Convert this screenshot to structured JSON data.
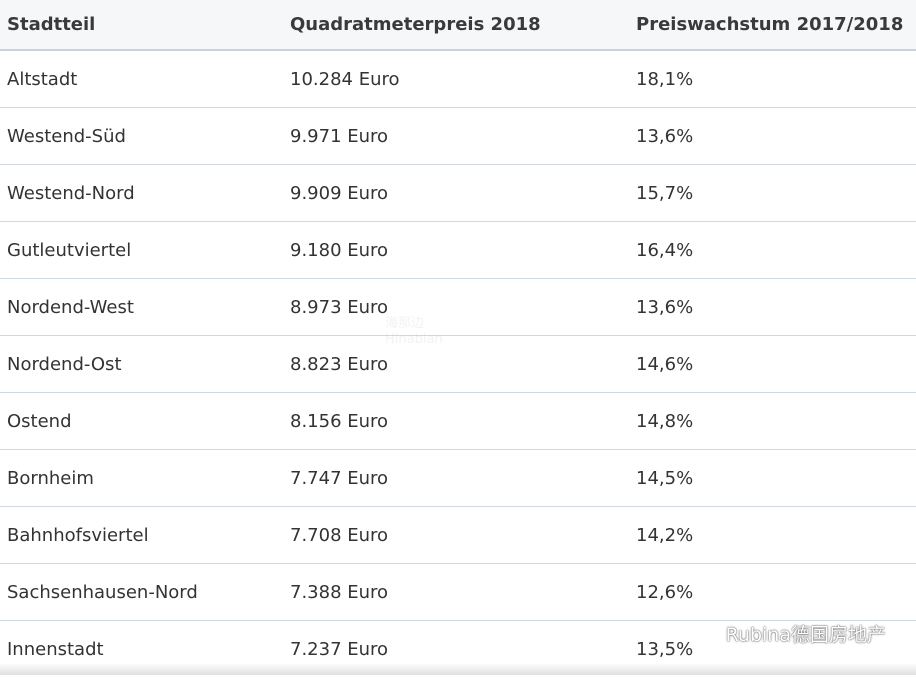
{
  "table": {
    "headers": [
      "Stadtteil",
      "Quadratmeterpreis 2018",
      "Preiswachstum 2017/2018"
    ],
    "rows": [
      [
        "Altstadt",
        "10.284 Euro",
        "18,1%"
      ],
      [
        "Westend-Süd",
        "9.971 Euro",
        "13,6%"
      ],
      [
        "Westend-Nord",
        "9.909 Euro",
        "15,7%"
      ],
      [
        "Gutleutviertel",
        "9.180 Euro",
        "16,4%"
      ],
      [
        "Nordend-West",
        "8.973 Euro",
        "13,6%"
      ],
      [
        "Nordend-Ost",
        "8.823 Euro",
        "14,6%"
      ],
      [
        "Ostend",
        "8.156 Euro",
        "14,8%"
      ],
      [
        "Bornheim",
        "7.747 Euro",
        "14,5%"
      ],
      [
        "Bahnhofsviertel",
        "7.708 Euro",
        "14,2%"
      ],
      [
        "Sachsenhausen-Nord",
        "7.388 Euro",
        "12,6%"
      ],
      [
        "Innenstadt",
        "7.237 Euro",
        "13,5%"
      ]
    ]
  },
  "watermark": {
    "line1": "海那边",
    "line2": "Hinabian"
  },
  "account_label": "Rubina德国房地产",
  "icons": {
    "account": "wechat-icon"
  }
}
